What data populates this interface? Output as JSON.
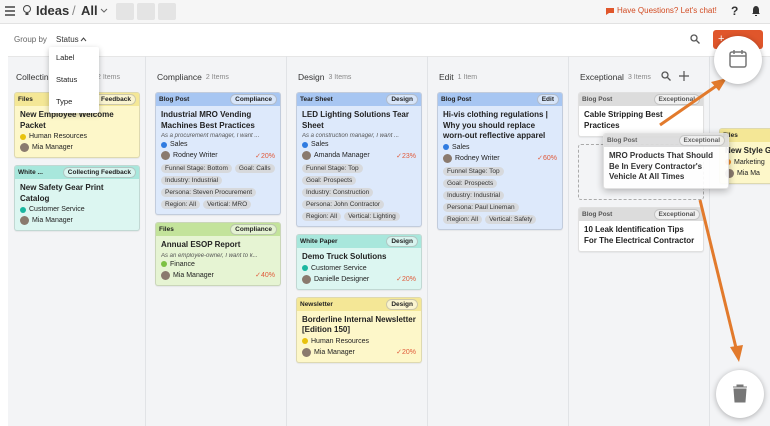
{
  "nav": {
    "app": "Ideas",
    "view": "All",
    "chat": "Have Questions? Let's chat!",
    "help": "?"
  },
  "toolbar": {
    "group_by": "Group by",
    "group_value": "Status",
    "menu": [
      "Label",
      "Status",
      "Type"
    ],
    "create": "+"
  },
  "columns": [
    {
      "name": "Collecting Feedback",
      "count": "2 Items",
      "cards": [
        {
          "type": "Files",
          "status": "Collecting Feedback",
          "color": "yellow",
          "title": "New Employee Welcome Packet",
          "tag": "Human Resources",
          "dot": "#e8c20c",
          "user": "Mia Manager"
        },
        {
          "type": "White ...",
          "status": "Collecting Feedback",
          "color": "teal",
          "title": "New Safety Gear Print Catalog",
          "tag": "Customer Service",
          "dot": "#19b6a0",
          "user": "Mia Manager"
        }
      ]
    },
    {
      "name": "Compliance",
      "count": "2 Items",
      "cards": [
        {
          "type": "Blog Post",
          "status": "Compliance",
          "color": "blue",
          "title": "Industrial MRO Vending Machines Best Practices",
          "subtitle": "As a procurement manager, I want ...",
          "tag": "Sales",
          "dot": "#2f7be0",
          "user": "Rodney Writer",
          "progress": "20%",
          "chips": [
            "Funnel Stage: Bottom",
            "Goal: Calls",
            "Industry: Industrial",
            "Persona: Steven Procurement",
            "Region: All",
            "Vertical: MRO"
          ]
        },
        {
          "type": "Files",
          "status": "Compliance",
          "color": "green",
          "title": "Annual ESOP Report",
          "subtitle": "As an employee-owner, I want to k...",
          "tag": "Finance",
          "dot": "#7cc142",
          "user": "Mia Manager",
          "progress": "40%"
        }
      ]
    },
    {
      "name": "Design",
      "count": "3 Items",
      "cards": [
        {
          "type": "Tear Sheet",
          "status": "Design",
          "color": "blue",
          "title": "LED Lighting Solutions Tear Sheet",
          "subtitle": "As a construction manager, I want ...",
          "tag": "Sales",
          "dot": "#2f7be0",
          "user": "Amanda Manager",
          "progress": "23%",
          "chips": [
            "Funnel Stage: Top",
            "Goal: Prospects",
            "Industry: Construction",
            "Persona: John Contractor",
            "Region: All",
            "Vertical: Lighting"
          ]
        },
        {
          "type": "White Paper",
          "status": "Design",
          "color": "teal",
          "title": "Demo Truck Solutions",
          "tag": "Customer Service",
          "dot": "#19b6a0",
          "user": "Danielle Designer",
          "progress": "20%"
        },
        {
          "type": "Newsletter",
          "status": "Design",
          "color": "yellow",
          "title": "Borderline Internal Newsletter [Edition 150]",
          "tag": "Human Resources",
          "dot": "#e8c20c",
          "user": "Mia Manager",
          "progress": "20%"
        }
      ]
    },
    {
      "name": "Edit",
      "count": "1 Item",
      "cards": [
        {
          "type": "Blog Post",
          "status": "Edit",
          "color": "blue",
          "title": "Hi-vis clothing regulations | Why you should replace worn-out reflective apparel",
          "tag": "Sales",
          "dot": "#2f7be0",
          "user": "Rodney Writer",
          "progress": "60%",
          "chips": [
            "Funnel Stage: Top",
            "Goal: Prospects",
            "Industry: Industrial",
            "Persona: Paul Lineman",
            "Region: All",
            "Vertical: Safety"
          ]
        }
      ]
    },
    {
      "name": "Exceptional",
      "count": "3 Items",
      "cards": [
        {
          "type": "Blog Post",
          "status": "Exceptional",
          "color": "gray",
          "title": "Cable Stripping Best Practices"
        },
        {
          "placeholder": true
        },
        {
          "type": "Blog Post",
          "status": "Exceptional",
          "color": "gray",
          "title": "10 Leak Identification Tips For The Electrical Contractor"
        }
      ]
    },
    {
      "cards": [
        {
          "type": "Files",
          "color": "yellow",
          "title": "New Style G",
          "tag": "Marketing",
          "dot": "#f08a24",
          "user": "Mia Ma"
        }
      ]
    }
  ],
  "drag": {
    "type": "Blog Post",
    "status": "Exceptional",
    "title": "MRO Products That Should Be In Every Contractor's Vehicle At All Times"
  }
}
